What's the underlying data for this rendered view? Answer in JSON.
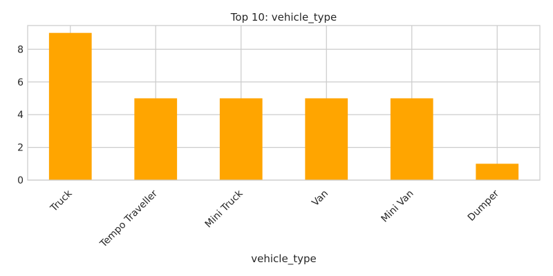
{
  "chart_data": {
    "type": "bar",
    "title": "Top 10: vehicle_type",
    "xlabel": "vehicle_type",
    "ylabel": "",
    "categories": [
      "Truck",
      "Tempo Traveller",
      "Mini Truck",
      "Van",
      "Mini Van",
      "Dumper"
    ],
    "values": [
      9,
      5,
      5,
      5,
      5,
      1
    ],
    "ylim": [
      0,
      9.45
    ],
    "yticks": [
      0,
      2,
      4,
      6,
      8
    ],
    "grid": true,
    "bar_color": "#FFA500",
    "grid_color": "#CCCCCC",
    "axes_edge_color": "#CCCCCC",
    "text_color": "#262626"
  }
}
